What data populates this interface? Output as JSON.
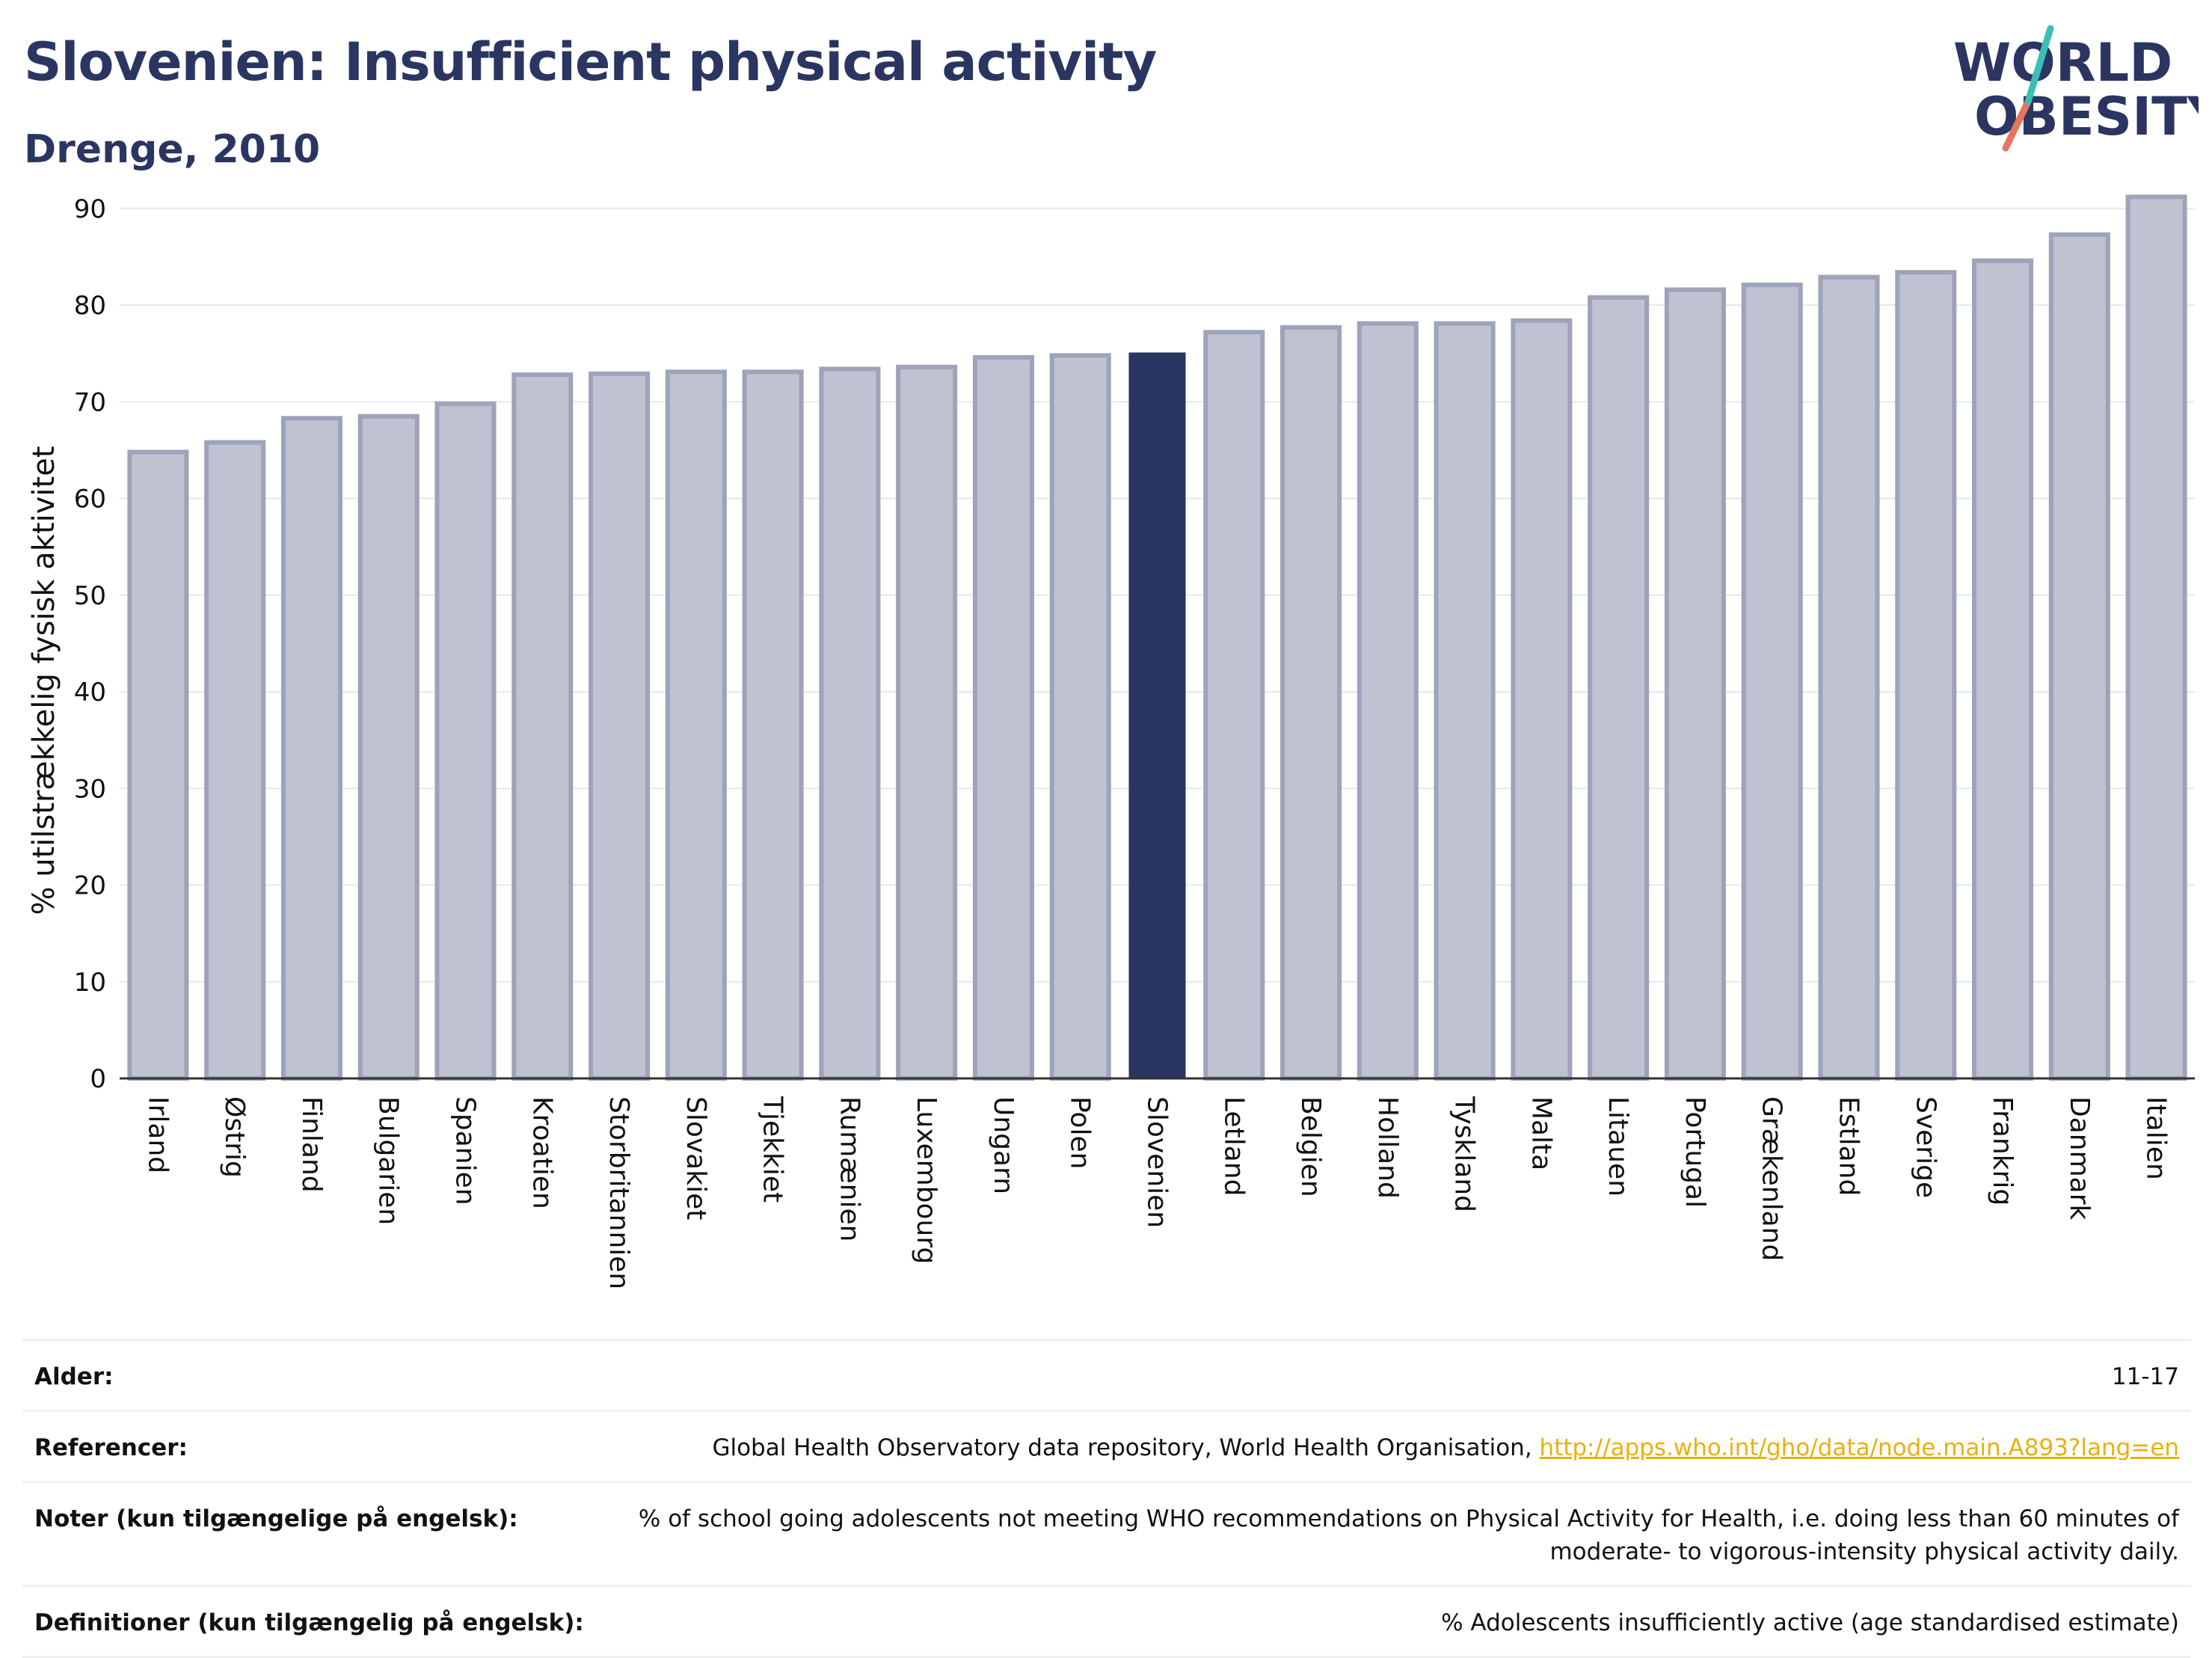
{
  "header": {
    "title": "Slovenien: Insufficient physical activity",
    "subtitle": "Drenge, 2010"
  },
  "logo": {
    "line1": "WORLD",
    "line2": "OBESITY",
    "colors": [
      "#2b3561",
      "#3bbfb4",
      "#e8735f"
    ]
  },
  "chart_data": {
    "type": "bar",
    "title": "Slovenien: Insufficient physical activity",
    "subtitle": "Drenge, 2010",
    "ylabel": "% utilstrækkelig fysisk aktivitet",
    "xlabel": "",
    "ylim": [
      0,
      93
    ],
    "yticks": [
      0,
      10,
      20,
      30,
      40,
      50,
      60,
      70,
      80,
      90
    ],
    "grid": true,
    "highlight": "Slovenien",
    "colors": {
      "bar": "#bfc2d0",
      "bar_edge": "#9ea3ba",
      "highlight": "#2b3561"
    },
    "categories": [
      "Irland",
      "Østrig",
      "Finland",
      "Bulgarien",
      "Spanien",
      "Kroatien",
      "Storbritannien",
      "Slovakiet",
      "Tjekkiet",
      "Rumænien",
      "Luxembourg",
      "Ungarn",
      "Polen",
      "Slovenien",
      "Letland",
      "Belgien",
      "Holland",
      "Tyskland",
      "Malta",
      "Litauen",
      "Portugal",
      "Grækenland",
      "Estland",
      "Sverige",
      "Frankrig",
      "Danmark",
      "Italien"
    ],
    "values": [
      64.8,
      65.8,
      68.3,
      68.5,
      69.8,
      72.8,
      72.9,
      73.1,
      73.1,
      73.4,
      73.6,
      74.6,
      74.8,
      75.1,
      77.2,
      77.7,
      78.1,
      78.1,
      78.4,
      80.8,
      81.6,
      82.1,
      82.9,
      83.4,
      84.6,
      87.3,
      91.2
    ]
  },
  "meta": [
    {
      "label": "Alder:",
      "value": "11-17"
    },
    {
      "label": "Referencer:",
      "value": "Global Health Observatory data repository, World Health Organisation, ",
      "link": "http://apps.who.int/gho/data/node.main.A893?lang=en"
    },
    {
      "label": "Noter (kun tilgængelige på engelsk):",
      "value": "% of school going adolescents not meeting WHO recommendations on Physical Activity for Health, i.e. doing less than 60 minutes of moderate- to vigorous-intensity physical activity daily."
    },
    {
      "label": "Definitioner (kun tilgængelig på engelsk):",
      "value": "% Adolescents insufficiently active (age standardised estimate)"
    }
  ]
}
